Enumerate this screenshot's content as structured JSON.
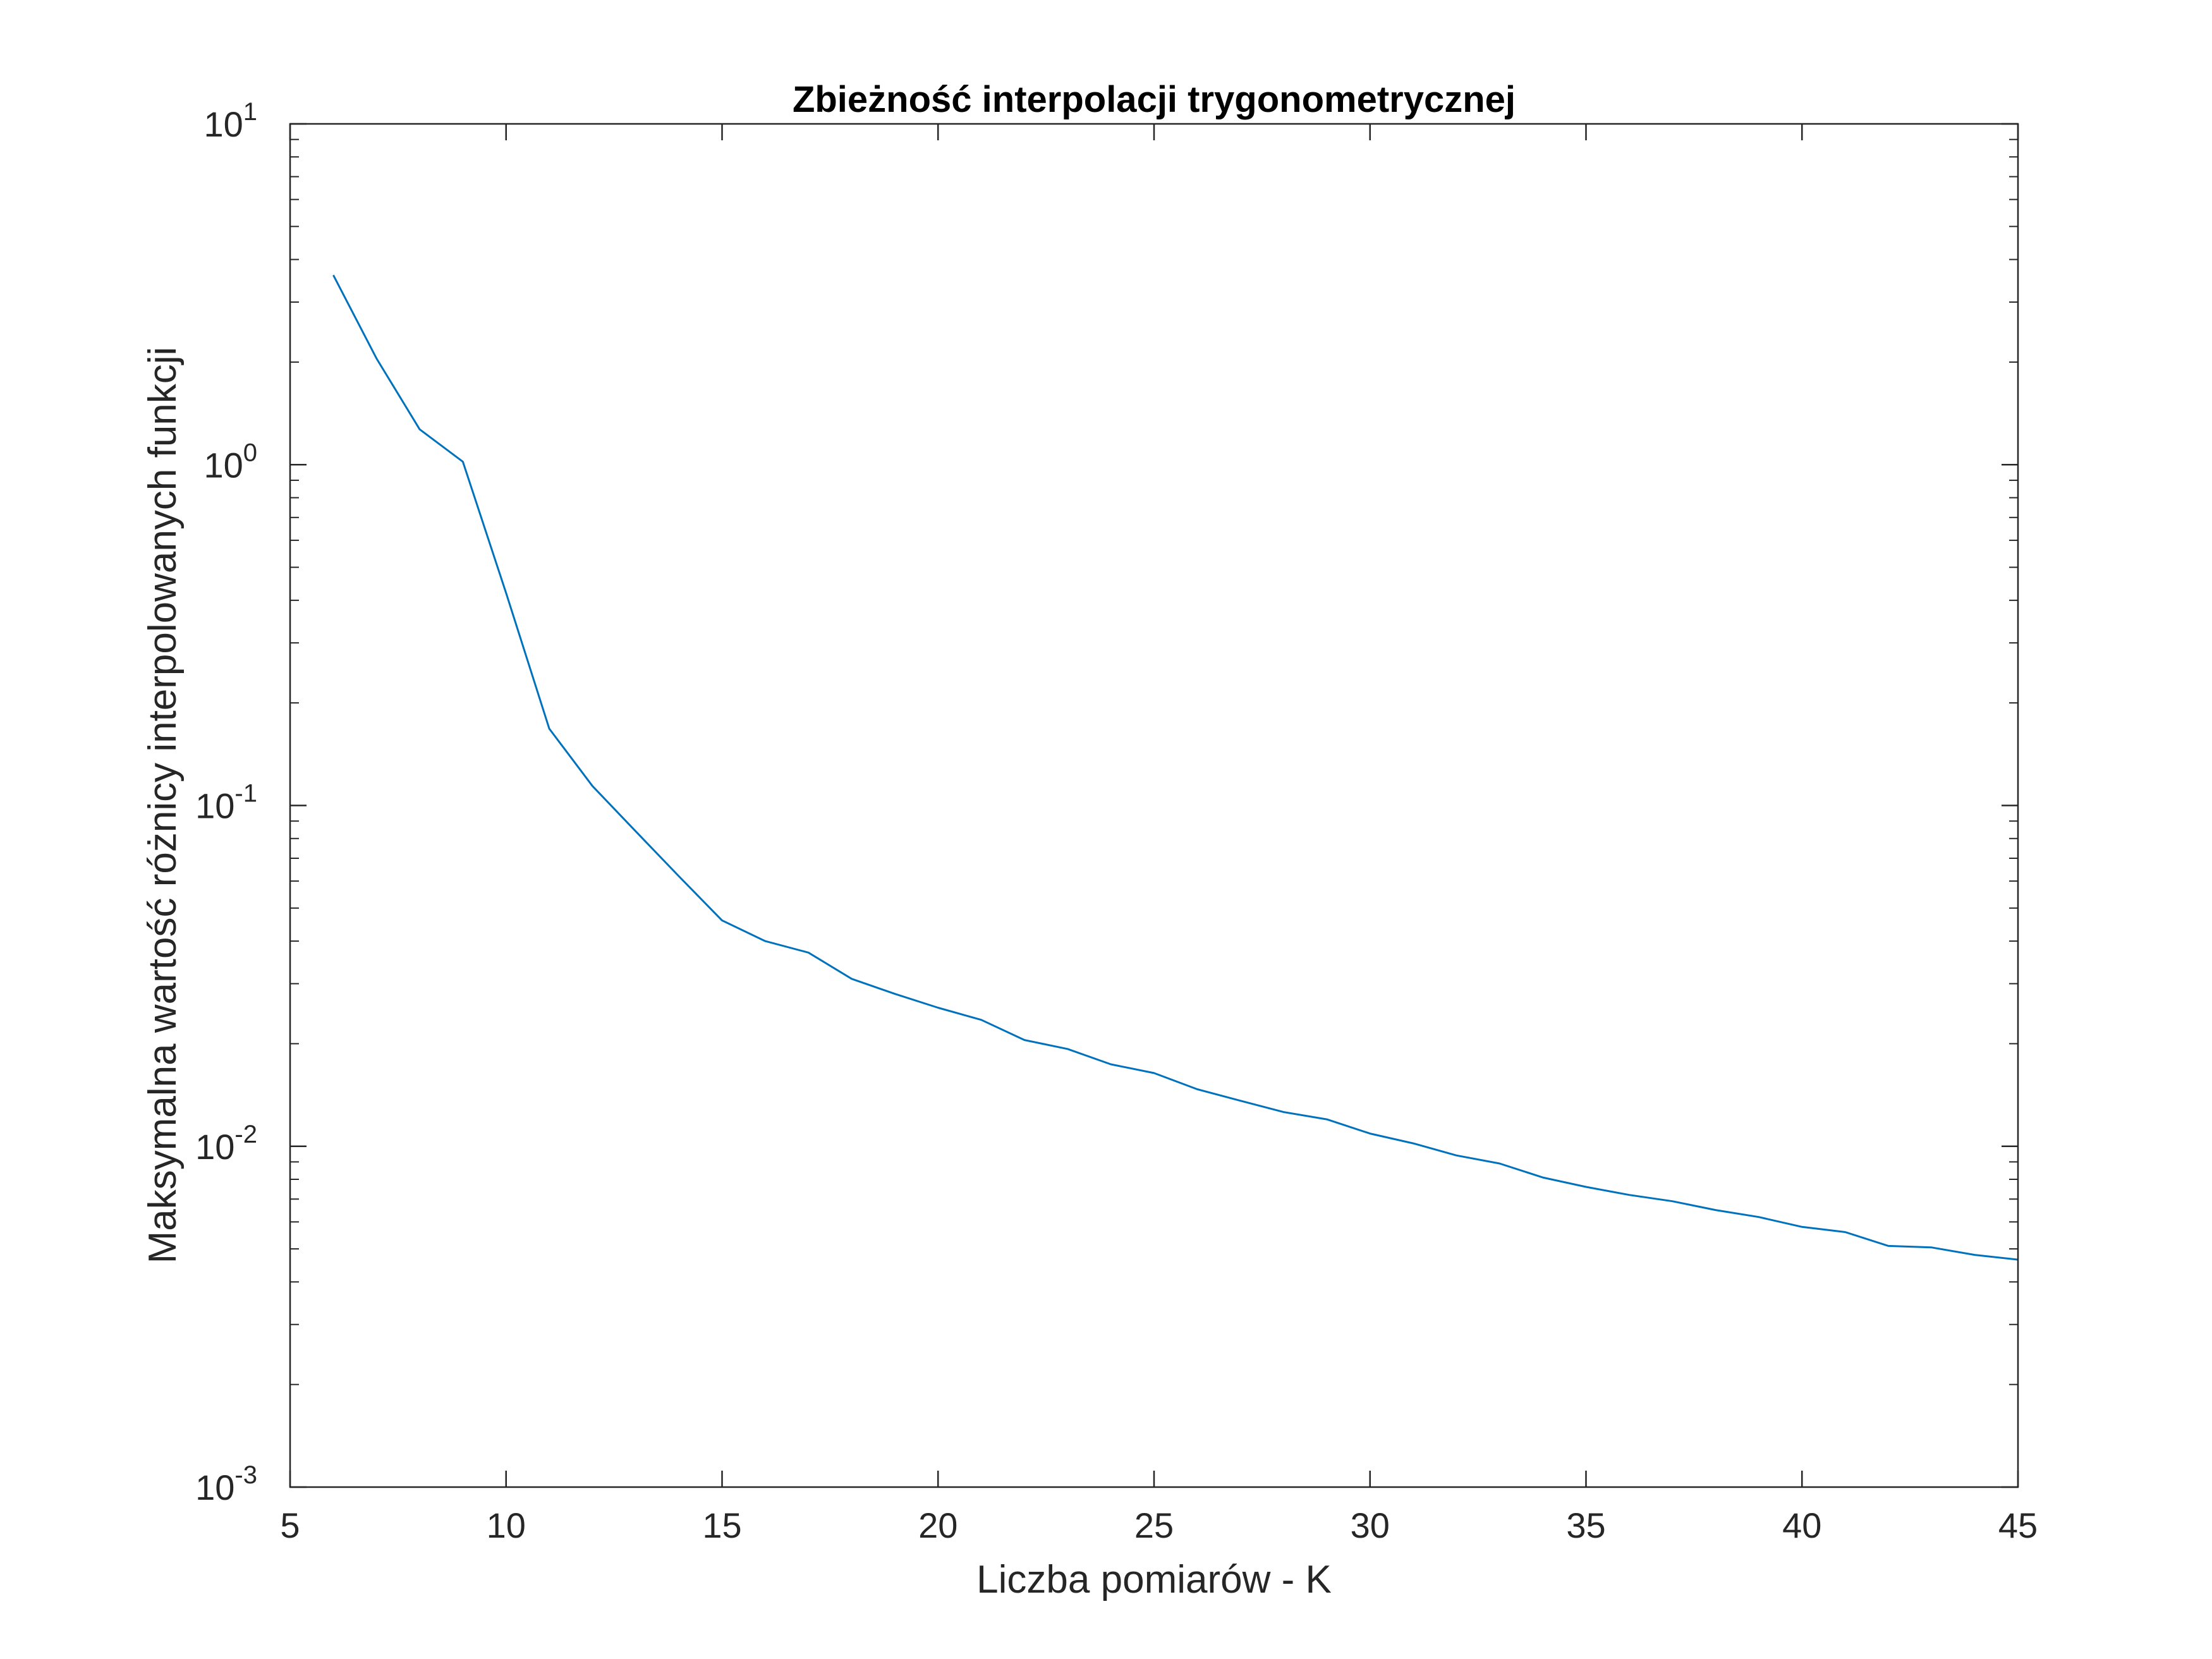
{
  "chart_data": {
    "type": "line",
    "title": "Zbieżność interpolacji trygonometrycznej",
    "xlabel": "Liczba pomiarów - K",
    "ylabel": "Maksymalna wartość różnicy interpolowanych funkcji",
    "xlim": [
      5,
      45
    ],
    "ylim": [
      0.001,
      10
    ],
    "yscale": "log",
    "xticks": [
      5,
      10,
      15,
      20,
      25,
      30,
      35,
      40,
      45
    ],
    "yticks": [
      {
        "value": 0.001,
        "base": "10",
        "exp": "-3"
      },
      {
        "value": 0.01,
        "base": "10",
        "exp": "-2"
      },
      {
        "value": 0.1,
        "base": "10",
        "exp": "-1"
      },
      {
        "value": 1,
        "base": "10",
        "exp": "0"
      },
      {
        "value": 10,
        "base": "10",
        "exp": "1"
      }
    ],
    "grid": false,
    "line_color": "#0072BD",
    "series": [
      {
        "x": [
          6,
          7,
          8,
          9,
          10,
          11,
          12,
          13,
          14,
          15,
          16,
          17,
          18,
          19,
          20,
          21,
          22,
          23,
          24,
          25,
          26,
          27,
          28,
          29,
          30,
          31,
          32,
          33,
          34,
          35,
          36,
          37,
          38,
          39,
          40,
          41,
          42,
          43,
          44,
          45
        ],
        "y": [
          3.6,
          2.05,
          1.27,
          1.02,
          0.42,
          0.168,
          0.114,
          0.084,
          0.062,
          0.046,
          0.04,
          0.037,
          0.031,
          0.028,
          0.0255,
          0.0235,
          0.0205,
          0.0193,
          0.0174,
          0.0164,
          0.0147,
          0.0136,
          0.0126,
          0.012,
          0.0109,
          0.0102,
          0.0094,
          0.0089,
          0.0081,
          0.0076,
          0.0072,
          0.0069,
          0.0065,
          0.0062,
          0.0058,
          0.0056,
          0.0051,
          0.00505,
          0.0048,
          0.00465
        ]
      }
    ]
  }
}
